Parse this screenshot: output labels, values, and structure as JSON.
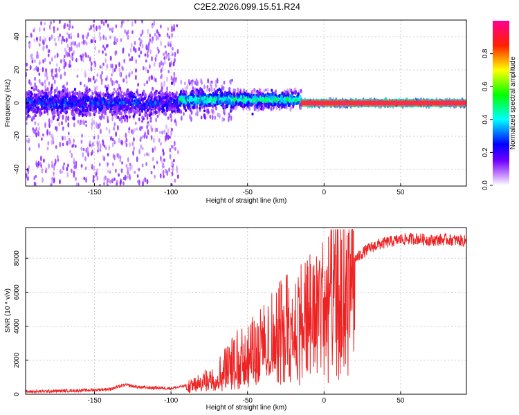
{
  "title": "C2E2.2026.099.15.51.R24",
  "chart_data": [
    {
      "type": "heatmap",
      "xlabel": "Height of straight line (km)",
      "ylabel": "Frequency (Hz)",
      "xlim": [
        -195,
        93
      ],
      "ylim": [
        -50,
        50
      ],
      "x_ticks": [
        -150,
        -100,
        -50,
        0,
        50
      ],
      "y_ticks": [
        -40,
        -20,
        0,
        20,
        40
      ],
      "colorbar": {
        "label": "Normalized spectral amplitude",
        "range": [
          0,
          1
        ],
        "ticks": [
          0.0,
          0.2,
          0.4,
          0.6,
          0.8
        ],
        "colormap": [
          "#ffffff",
          "#8000ff",
          "#0000ff",
          "#00ffff",
          "#00ff00",
          "#ffff00",
          "#ff0000",
          "#ff0080"
        ]
      },
      "bands": [
        {
          "x_range": [
            -195,
            -95
          ],
          "center_freq": 0,
          "core_halfwidth_hz": 6,
          "scatter_halfwidth_hz": 50,
          "amplitude": 0.25
        },
        {
          "x_range": [
            -95,
            -60
          ],
          "center_freq": 2,
          "core_halfwidth_hz": 4,
          "scatter_halfwidth_hz": 12,
          "amplitude": 0.45
        },
        {
          "x_range": [
            -60,
            -15
          ],
          "center_freq": 2,
          "core_halfwidth_hz": 3,
          "scatter_halfwidth_hz": 6,
          "amplitude": 0.5
        },
        {
          "x_range": [
            -15,
            93
          ],
          "center_freq": 0,
          "core_halfwidth_hz": 1,
          "scatter_halfwidth_hz": 2,
          "amplitude": 0.95
        }
      ],
      "grid": true
    },
    {
      "type": "line",
      "xlabel": "Height of straight line (km)",
      "ylabel": "SNR (10 * v/v)",
      "xlim": [
        -195,
        93
      ],
      "ylim": [
        0,
        9800
      ],
      "x_ticks": [
        -150,
        -100,
        -50,
        0,
        50
      ],
      "y_ticks": [
        0,
        2000,
        4000,
        6000,
        8000
      ],
      "color": "#ee2222",
      "grid": true,
      "series": [
        {
          "x": [
            -195,
            -180,
            -160,
            -140,
            -130,
            -120,
            -100,
            -90,
            -80,
            -75,
            -70,
            -65,
            -60,
            -55,
            -50,
            -45,
            -40,
            -35,
            -30,
            -25,
            -20,
            -15,
            -10,
            -5,
            0,
            5,
            10,
            15,
            20,
            25,
            30,
            35,
            40,
            50,
            60,
            70,
            80,
            93
          ],
          "y": [
            150,
            180,
            220,
            300,
            550,
            400,
            350,
            500,
            800,
            1100,
            1500,
            1800,
            2200,
            2600,
            2900,
            3100,
            3400,
            3800,
            4200,
            4700,
            5000,
            5200,
            5600,
            5800,
            6100,
            6400,
            6800,
            7400,
            7900,
            8300,
            8600,
            8800,
            8900,
            9100,
            9150,
            9050,
            9100,
            9000
          ]
        }
      ]
    }
  ]
}
